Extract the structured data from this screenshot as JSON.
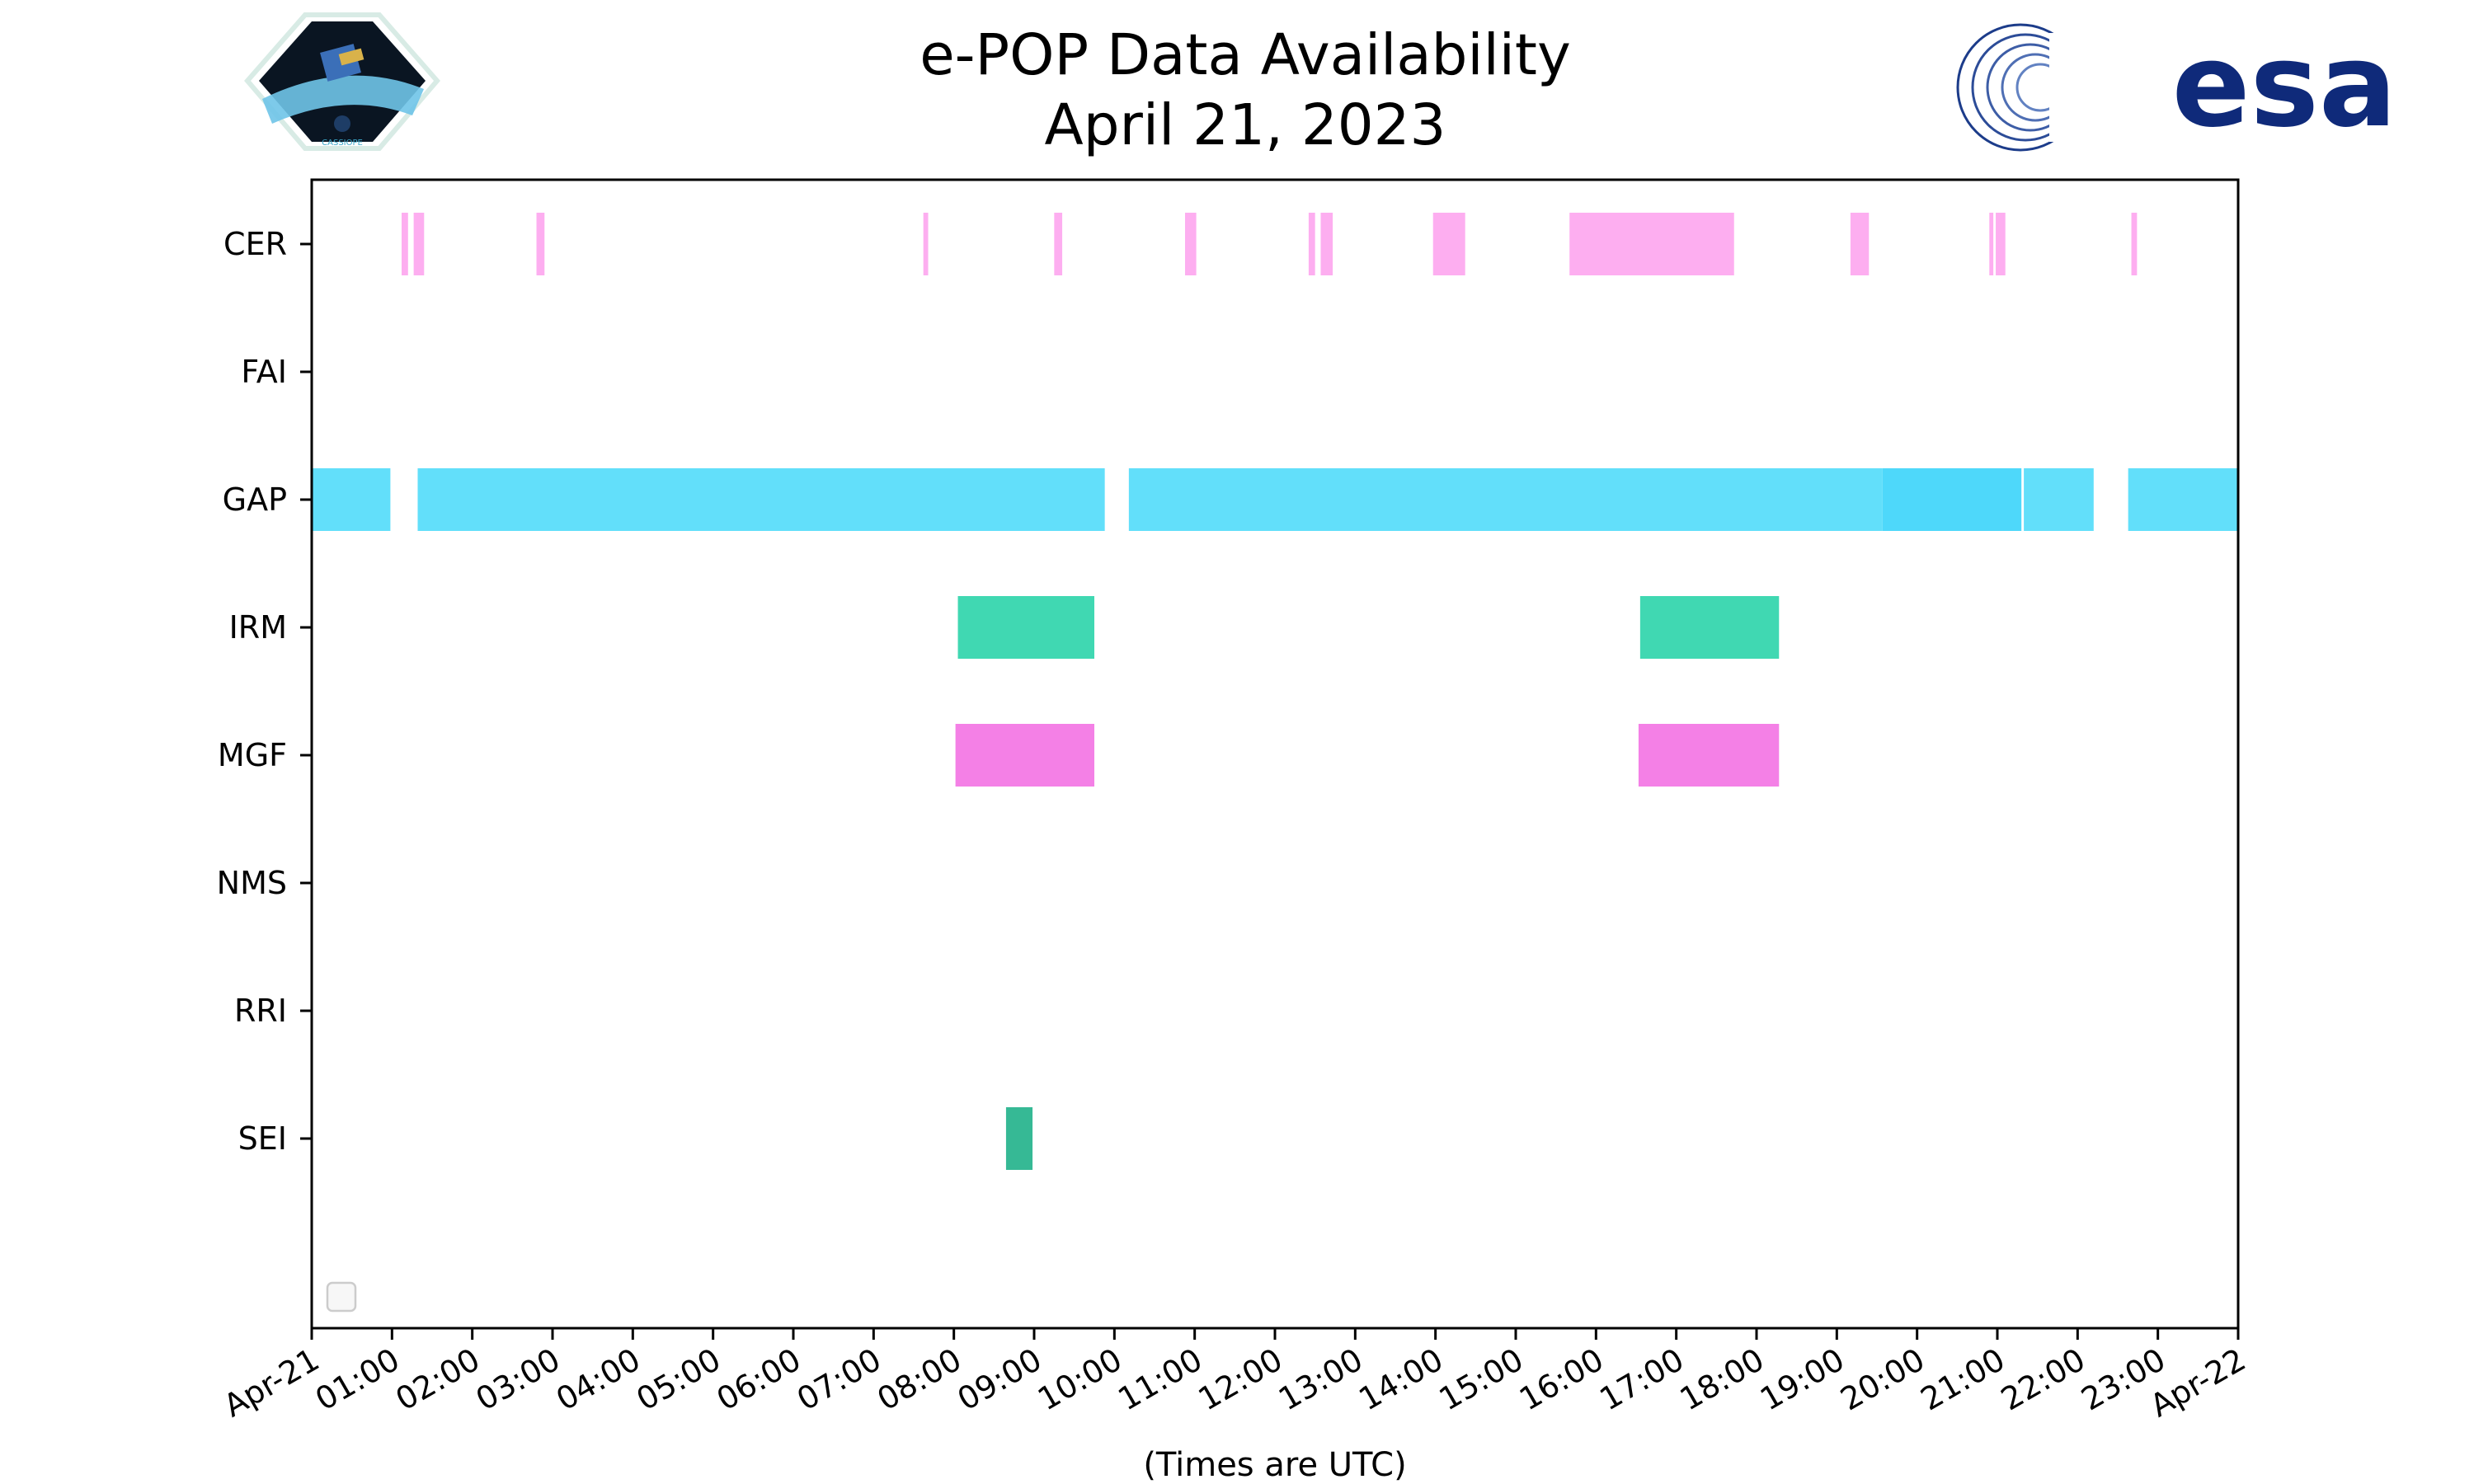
{
  "header": {
    "title_line1": "e-POP Data Availability",
    "title_line2": "April 21, 2023",
    "logo_left_text": "CASSIOPE",
    "logo_right_text": "esa"
  },
  "chart_data": {
    "type": "timeline",
    "title": "e-POP Data Availability\nApril 21, 2023",
    "xlabel": "(Times are UTC)",
    "ylabel": "",
    "x_range_hours": [
      0,
      24
    ],
    "x_tick_labels": [
      "Apr-21",
      "01:00",
      "02:00",
      "03:00",
      "04:00",
      "05:00",
      "06:00",
      "07:00",
      "08:00",
      "09:00",
      "10:00",
      "11:00",
      "12:00",
      "13:00",
      "14:00",
      "15:00",
      "16:00",
      "17:00",
      "18:00",
      "19:00",
      "20:00",
      "21:00",
      "22:00",
      "23:00",
      "Apr-22"
    ],
    "instruments": [
      "CER",
      "FAI",
      "GAP",
      "IRM",
      "MGF",
      "NMS",
      "RRI",
      "SEI"
    ],
    "legend": {
      "placement": "lower-left",
      "entries": []
    },
    "series": [
      {
        "instrument": "CER",
        "color": "#fdaef0",
        "intervals": [
          [
            1.12,
            1.2
          ],
          [
            1.27,
            1.4
          ],
          [
            2.8,
            2.9
          ],
          [
            7.62,
            7.68
          ],
          [
            9.25,
            9.35
          ],
          [
            10.88,
            11.02
          ],
          [
            12.42,
            12.5
          ],
          [
            12.57,
            12.72
          ],
          [
            13.97,
            14.37
          ],
          [
            15.67,
            17.72
          ],
          [
            19.17,
            19.4
          ],
          [
            20.9,
            20.95
          ],
          [
            20.98,
            21.1
          ],
          [
            22.67,
            22.74
          ]
        ]
      },
      {
        "instrument": "FAI",
        "color": "#c0c0c0",
        "intervals": []
      },
      {
        "instrument": "GAP",
        "color": "#62dffa",
        "intervals": [
          [
            0,
            0.98
          ],
          [
            1.32,
            9.88
          ],
          [
            10.18,
            19.57
          ],
          [
            21.33,
            22.2
          ],
          [
            22.63,
            24
          ]
        ]
      },
      {
        "instrument": "GAP",
        "color": "#4ed8fa",
        "intervals": [
          [
            19.57,
            21.3
          ]
        ]
      },
      {
        "instrument": "IRM",
        "color": "#40d8b2",
        "intervals": [
          [
            8.05,
            9.75
          ],
          [
            16.55,
            18.28
          ]
        ]
      },
      {
        "instrument": "MGF",
        "color": "#f480e6",
        "intervals": [
          [
            8.02,
            9.75
          ],
          [
            16.53,
            18.28
          ]
        ]
      },
      {
        "instrument": "NMS",
        "color": "#c0c0c0",
        "intervals": []
      },
      {
        "instrument": "RRI",
        "color": "#c0c0c0",
        "intervals": []
      },
      {
        "instrument": "SEI",
        "color": "#36b995",
        "intervals": [
          [
            8.65,
            8.98
          ]
        ]
      }
    ]
  }
}
